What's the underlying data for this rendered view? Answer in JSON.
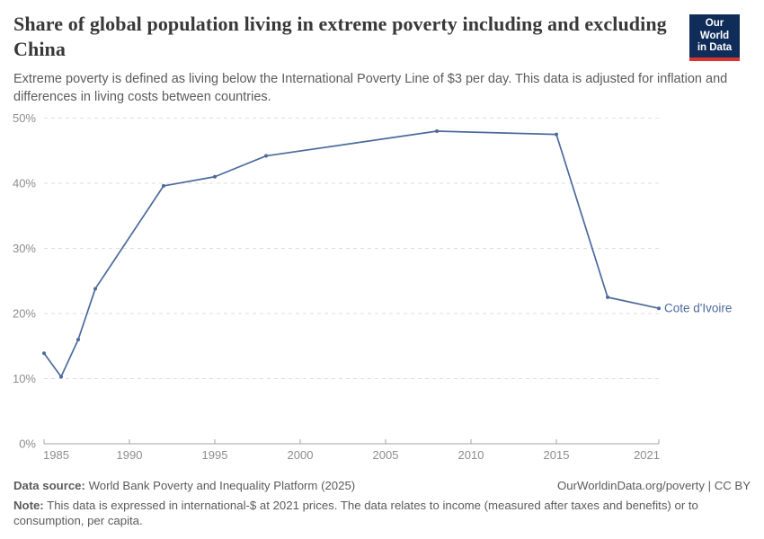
{
  "header": {
    "title": "Share of global population living in extreme poverty including and excluding China",
    "subtitle": "Extreme poverty is defined as living below the International Poverty Line of $3 per day. This data is adjusted for inflation and differences in living costs between countries.",
    "logo": {
      "line1": "Our World",
      "line2": "in Data",
      "bg_color": "#102d59",
      "accent_color": "#d8352f"
    }
  },
  "chart_data": {
    "type": "line",
    "title": "Share of global population living in extreme poverty including and excluding China",
    "series": [
      {
        "name": "Cote d'Ivoire",
        "color": "#4c6a9c",
        "x": [
          1985,
          1986,
          1987,
          1988,
          1992,
          1995,
          1998,
          2008,
          2015,
          2018,
          2021
        ],
        "values": [
          13.9,
          10.3,
          16.0,
          23.8,
          39.6,
          41.0,
          44.2,
          48.0,
          47.5,
          22.5,
          20.8
        ]
      }
    ],
    "xlim": [
      1985,
      2021
    ],
    "ylim": [
      0,
      50
    ],
    "x_ticks": [
      1985,
      1990,
      1995,
      2000,
      2005,
      2010,
      2015,
      2021
    ],
    "y_ticks": [
      0,
      10,
      20,
      30,
      40,
      50
    ],
    "y_tick_suffix": "%",
    "grid": "horizontal-dashed",
    "legend": "end-of-line-label",
    "axis_color": "#a6a6a6",
    "gridline_color": "#dedede",
    "tick_label_color": "#8d8d8d"
  },
  "footer": {
    "source_label": "Data source:",
    "source_text": " World Bank Poverty and Inequality Platform (2025)",
    "attribution": "OurWorldinData.org/poverty | CC BY",
    "note_label": "Note:",
    "note_text": " This data is expressed in international-$ at 2021 prices. The data relates to income (measured after taxes and benefits) or to consumption, per capita."
  }
}
